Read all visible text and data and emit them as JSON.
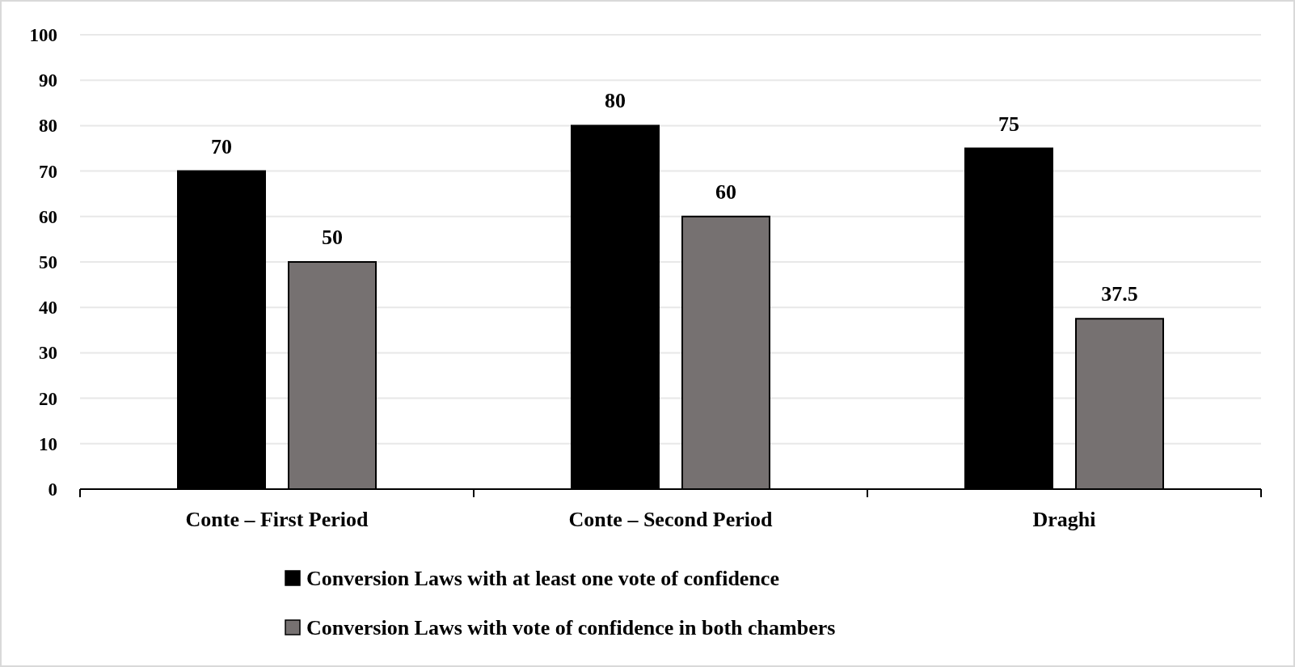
{
  "chart_data": {
    "type": "bar",
    "categories": [
      "Conte – First Period",
      "Conte – Second Period",
      "Draghi"
    ],
    "series": [
      {
        "name": "Conversion Laws with at least one vote of confidence",
        "color": "#000000",
        "values": [
          70,
          80,
          75
        ]
      },
      {
        "name": "Conversion Laws with vote of confidence in both chambers",
        "color": "#767171",
        "values": [
          50,
          60,
          37.5
        ]
      }
    ],
    "ylim": [
      0,
      100
    ],
    "yticks": [
      0,
      10,
      20,
      30,
      40,
      50,
      60,
      70,
      80,
      90,
      100
    ],
    "grid": "y",
    "legend": "bottom",
    "data_labels": true
  }
}
